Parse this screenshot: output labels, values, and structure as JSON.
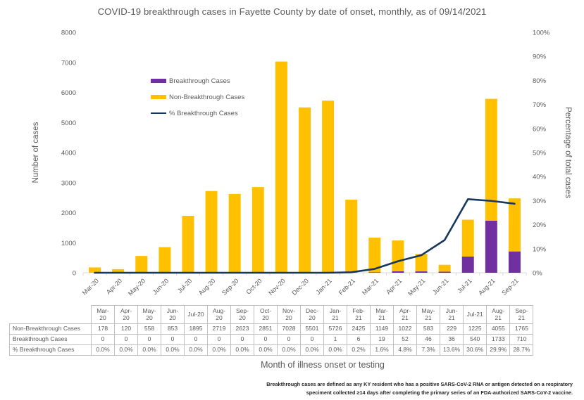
{
  "title": "COVID-19 breakthrough cases in Fayette County by date of onset, monthly, as of 09/14/2021",
  "left_axis": {
    "title": "Number of cases",
    "min": 0,
    "max": 8000,
    "step": 1000
  },
  "right_axis": {
    "title": "Percentage of total cases",
    "min": 0,
    "max": 100,
    "step": 10,
    "suffix": "%"
  },
  "x_axis": {
    "title": "Month of illness onset or testing"
  },
  "colors": {
    "breakthrough": "#7030A0",
    "non_breakthrough": "#FFC000",
    "pct_line": "#17375E",
    "axis_line": "#D9D9D9",
    "text": "#595959",
    "table_border": "#BFBFBF"
  },
  "legend": {
    "items": [
      {
        "label": "Breakthrough Cases",
        "swatch": "bar",
        "color": "#7030A0"
      },
      {
        "label": "Non-Breakthrough Cases",
        "swatch": "bar",
        "color": "#FFC000"
      },
      {
        "label": "% Breakthrough Cases",
        "swatch": "line",
        "color": "#17375E"
      }
    ]
  },
  "chart_data": {
    "type": "combo-stacked-bar-line",
    "categories": [
      "Mar-20",
      "Apr-20",
      "May-20",
      "Jun-20",
      "Jul-20",
      "Aug-20",
      "Sep-20",
      "Oct-20",
      "Nov-20",
      "Dec-20",
      "Jan-21",
      "Feb-21",
      "Mar-21",
      "Apr-21",
      "May-21",
      "Jun-21",
      "Jul-21",
      "Aug-21",
      "Sep-21"
    ],
    "series": [
      {
        "name": "Breakthrough Cases",
        "type": "bar",
        "stack_order": 0,
        "axis": "left",
        "color": "#7030A0",
        "values": [
          0,
          0,
          0,
          0,
          0,
          0,
          0,
          0,
          0,
          0,
          1,
          6,
          19,
          52,
          46,
          36,
          540,
          1733,
          710
        ]
      },
      {
        "name": "Non-Breakthrough Cases",
        "type": "bar",
        "stack_order": 1,
        "axis": "left",
        "color": "#FFC000",
        "values": [
          178,
          120,
          558,
          853,
          1895,
          2719,
          2623,
          2851,
          7028,
          5501,
          5726,
          2425,
          1149,
          1022,
          583,
          229,
          1225,
          4055,
          1765
        ]
      },
      {
        "name": "% Breakthrough Cases",
        "type": "line",
        "axis": "right",
        "color": "#17375E",
        "values": [
          0.0,
          0.0,
          0.0,
          0.0,
          0.0,
          0.0,
          0.0,
          0.0,
          0.0,
          0.0,
          0.0,
          0.2,
          1.6,
          4.8,
          7.3,
          13.6,
          30.6,
          29.9,
          28.7
        ]
      }
    ],
    "title": "COVID-19 breakthrough cases in Fayette County by date of onset, monthly, as of 09/14/2021",
    "xlabel": "Month of illness onset or testing",
    "ylabel_left": "Number of cases",
    "ylabel_right": "Percentage of total cases",
    "ylim_left": [
      0,
      8000
    ],
    "ylim_right": [
      0,
      100
    ],
    "grid": false,
    "legend_position": "upper-left-inside"
  },
  "table": {
    "corner_label": "",
    "columns": [
      "Mar-20",
      "Apr-20",
      "May-20",
      "Jun-20",
      "Jul-20",
      "Aug-20",
      "Sep-20",
      "Oct-20",
      "Nov-20",
      "Dec-20",
      "Jan-21",
      "Feb-21",
      "Mar-21",
      "Apr-21",
      "May-21",
      "Jun-21",
      "Jul-21",
      "Aug-21",
      "Sep-21"
    ],
    "rows": [
      {
        "label": "Non-Breakthrough Cases",
        "values": [
          "178",
          "120",
          "558",
          "853",
          "1895",
          "2719",
          "2623",
          "2851",
          "7028",
          "5501",
          "5726",
          "2425",
          "1149",
          "1022",
          "583",
          "229",
          "1225",
          "4055",
          "1765"
        ]
      },
      {
        "label": "Breakthrough Cases",
        "values": [
          "0",
          "0",
          "0",
          "0",
          "0",
          "0",
          "0",
          "0",
          "0",
          "0",
          "1",
          "6",
          "19",
          "52",
          "46",
          "36",
          "540",
          "1733",
          "710"
        ]
      },
      {
        "label": "% Breakthrough Cases",
        "values": [
          "0.0%",
          "0.0%",
          "0.0%",
          "0.0%",
          "0.0%",
          "0.0%",
          "0.0%",
          "0.0%",
          "0.0%",
          "0.0%",
          "0.0%",
          "0.2%",
          "1.6%",
          "4.8%",
          "7.3%",
          "13.6%",
          "30.6%",
          "29.9%",
          "28.7%"
        ]
      }
    ]
  },
  "footnote": {
    "line1": "Breakthrough cases are defined as any KY resident who has a positive SARS-CoV-2 RNA or antigen detected on a respiratory",
    "line2": "speciment collected ≥14 days after completing the primary series of an FDA-authorized SARS-CoV-2 vaccine."
  }
}
